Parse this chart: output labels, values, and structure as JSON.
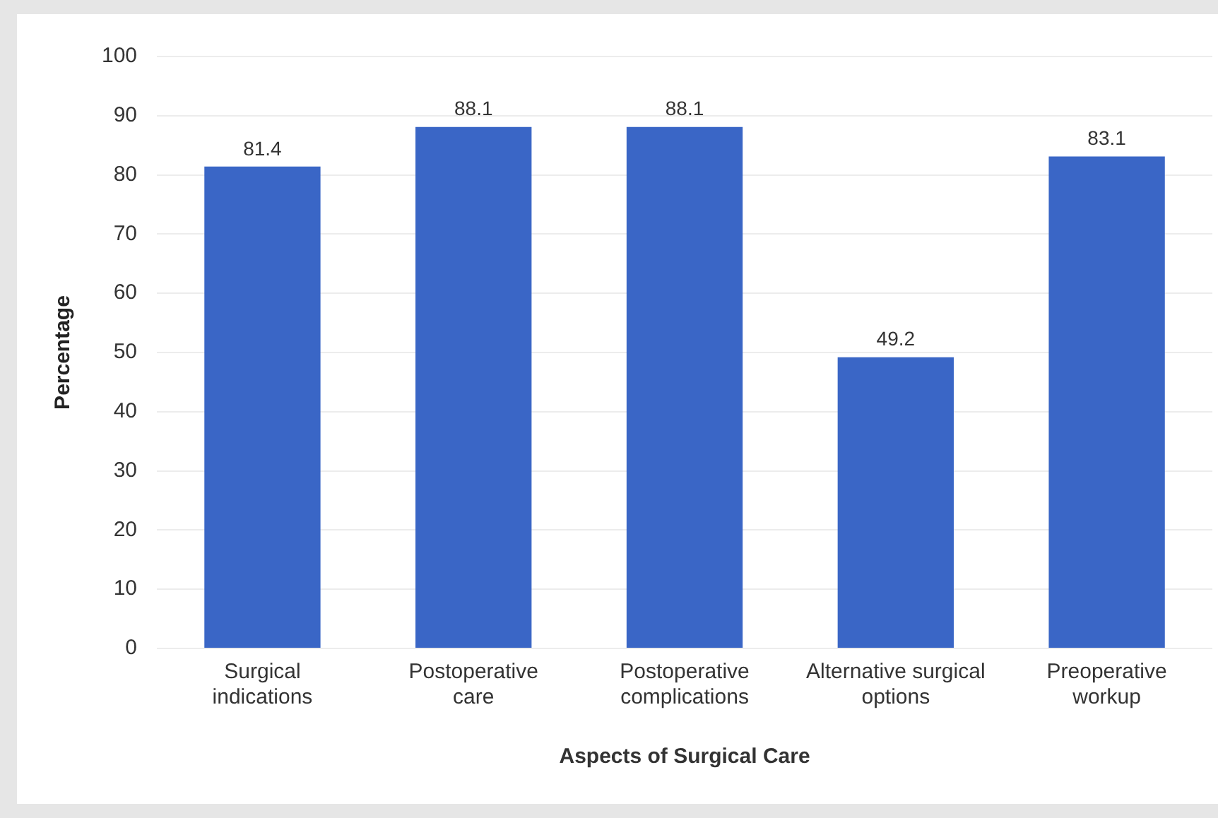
{
  "chart_data": {
    "type": "bar",
    "xlabel": "Aspects of Surgical Care",
    "ylabel": "Percentage",
    "categories": [
      "Surgical indications",
      "Postoperative care",
      "Postoperative complications",
      "Alternative surgical options",
      "Preoperative workup"
    ],
    "values": [
      81.4,
      88.1,
      88.1,
      49.2,
      83.1
    ],
    "color": "#3a66c6",
    "ylim": [
      0,
      100
    ],
    "yticks": [
      0,
      10,
      20,
      30,
      40,
      50,
      60,
      70,
      80,
      90,
      100
    ],
    "grid": "y",
    "data_labels": true,
    "legend": false
  }
}
